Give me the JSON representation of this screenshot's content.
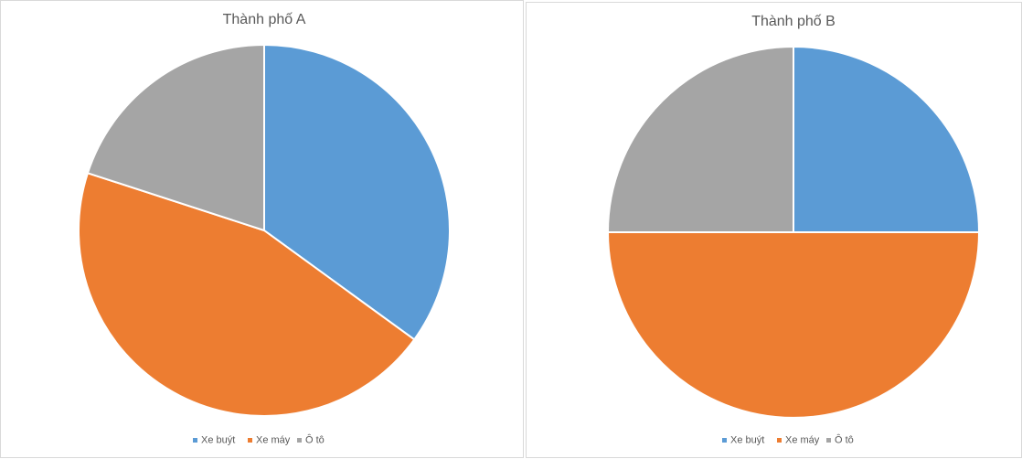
{
  "chart_data": [
    {
      "type": "pie",
      "title": "Thành phố A",
      "categories": [
        "Xe buýt",
        "Xe máy",
        "Ô tô"
      ],
      "values": [
        35,
        45,
        20
      ],
      "colors": [
        "#5b9bd5",
        "#ed7d31",
        "#a5a5a5"
      ],
      "legend": "bottom"
    },
    {
      "type": "pie",
      "title": "Thành phố B",
      "categories": [
        "Xe buýt",
        "Xe máy",
        "Ô tô"
      ],
      "values": [
        25,
        50,
        25
      ],
      "colors": [
        "#5b9bd5",
        "#ed7d31",
        "#a5a5a5"
      ],
      "legend": "bottom"
    }
  ]
}
